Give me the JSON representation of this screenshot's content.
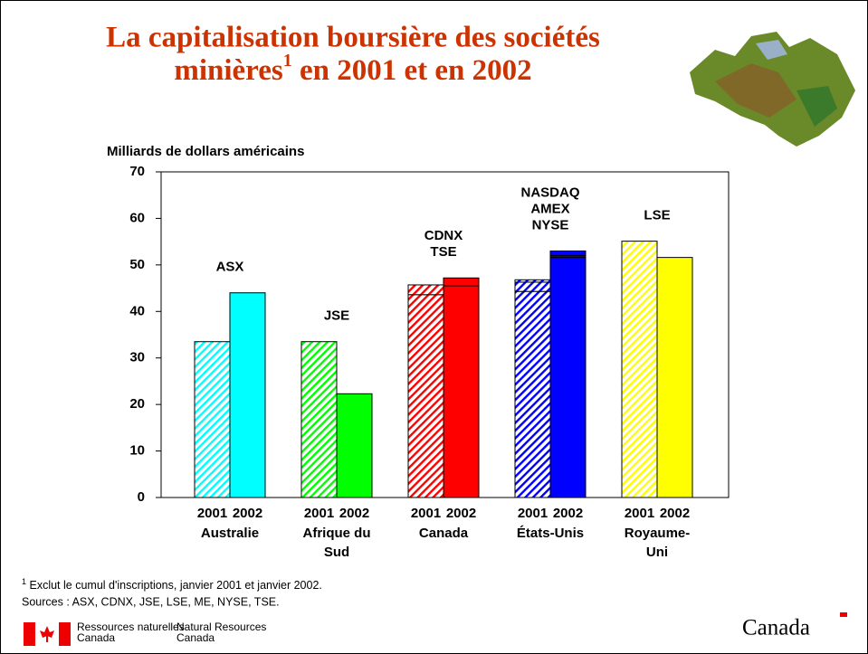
{
  "chart_data": {
    "type": "bar",
    "title": {
      "line1": "La capitalisation boursière des sociétés",
      "line2_start": "minières",
      "sup": "1",
      "line2_end": " en 2001 et en 2002"
    },
    "y_label": "Milliards de dollars américains",
    "ylim": [
      0,
      70
    ],
    "yticks": [
      0,
      10,
      20,
      30,
      40,
      50,
      60,
      70
    ],
    "groups": [
      {
        "label": [
          "Australie"
        ],
        "exchange": [
          "ASX"
        ],
        "color": "#00ffff",
        "bars": [
          {
            "label": "2001",
            "pattern": "hatch",
            "segments": [
              33.5
            ]
          },
          {
            "label": "2002",
            "pattern": "solid",
            "segments": [
              44
            ]
          }
        ]
      },
      {
        "label": [
          "Afrique du",
          "Sud"
        ],
        "exchange": [
          "JSE"
        ],
        "color": "#00ff00",
        "bars": [
          {
            "label": "2001",
            "pattern": "hatch",
            "segments": [
              33.5
            ]
          },
          {
            "label": "2002",
            "pattern": "solid",
            "segments": [
              22.3
            ]
          }
        ]
      },
      {
        "label": [
          "Canada"
        ],
        "exchange": [
          "CDNX",
          "TSE"
        ],
        "color": "#ff0000",
        "bars": [
          {
            "label": "2001",
            "pattern": "hatch",
            "segments": [
              43.6,
              2.1
            ]
          },
          {
            "label": "2002",
            "pattern": "solid",
            "segments": [
              45.5,
              1.7
            ]
          }
        ]
      },
      {
        "label": [
          "États-Unis"
        ],
        "exchange": [
          "NASDAQ",
          "AMEX",
          "NYSE"
        ],
        "color": "#0000ff",
        "bars": [
          {
            "label": "2001",
            "pattern": "hatch",
            "segments": [
              44.3,
              2.0,
              0.5
            ]
          },
          {
            "label": "2002",
            "pattern": "solid",
            "segments": [
              51.6,
              0.4,
              1.0
            ]
          }
        ]
      },
      {
        "label": [
          "Royaume-",
          "Uni"
        ],
        "exchange": [
          "LSE"
        ],
        "color": "#ffff00",
        "bars": [
          {
            "label": "2001",
            "pattern": "hatch",
            "segments": [
              55.1
            ]
          },
          {
            "label": "2002",
            "pattern": "solid",
            "segments": [
              51.6
            ]
          }
        ]
      }
    ],
    "footnote": {
      "sup": "1",
      "text": " Exclut le cumul d'inscriptions, janvier 2001 et janvier 2002."
    },
    "sources": "Sources : ASX, CDNX, JSE, LSE, ME, NYSE, TSE."
  },
  "footer": {
    "fr_1": "Ressources naturelles",
    "fr_2": "Canada",
    "en_1": "Natural Resources",
    "en_2": "Canada",
    "wordmark": "Canada"
  }
}
